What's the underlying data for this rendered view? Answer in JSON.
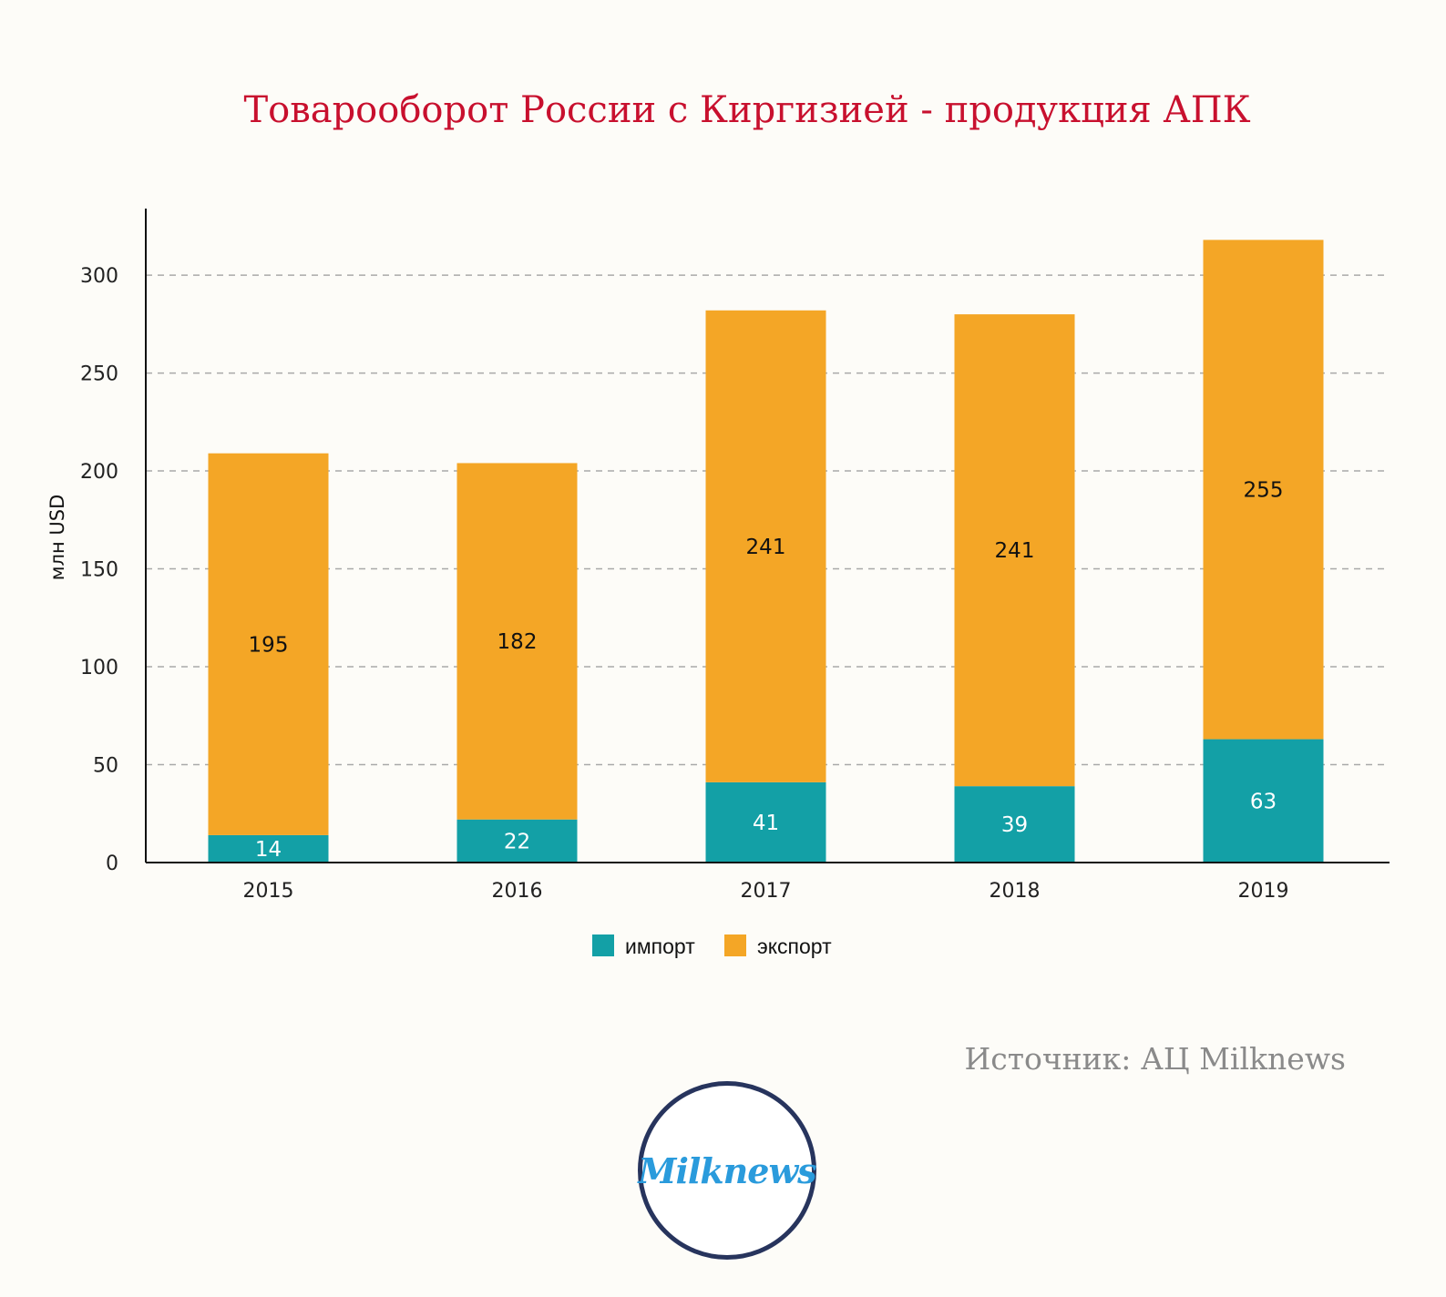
{
  "title": "Товарооборот России с Киргизией - продукция АПК",
  "source": "Источник: АЦ Milknews",
  "logo_text": "Milknews",
  "colors": {
    "import": "#13a0a6",
    "export": "#f4a626",
    "title": "#c8102e"
  },
  "chart_data": {
    "type": "bar",
    "stacked": true,
    "categories": [
      "2015",
      "2016",
      "2017",
      "2018",
      "2019"
    ],
    "series": [
      {
        "name": "импорт",
        "values": [
          14,
          22,
          41,
          39,
          63
        ]
      },
      {
        "name": "экспорт",
        "values": [
          195,
          182,
          241,
          241,
          255
        ]
      }
    ],
    "ylabel": "млн USD",
    "ylim": [
      0,
      334
    ],
    "yticks": [
      0,
      50,
      100,
      150,
      200,
      250,
      300
    ],
    "grid": true,
    "legend": "bottom-center"
  }
}
